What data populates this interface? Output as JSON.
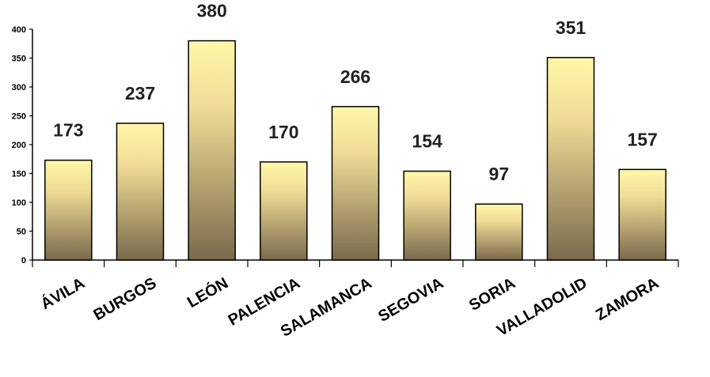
{
  "chart_data": {
    "type": "bar",
    "categories": [
      "ÁVILA",
      "BURGOS",
      "LEÓN",
      "PALENCIA",
      "SALAMANCA",
      "SEGOVIA",
      "SORIA",
      "VALLADOLID",
      "ZAMORA"
    ],
    "values": [
      173,
      237,
      380,
      170,
      266,
      154,
      97,
      351,
      157
    ],
    "ylim": [
      0,
      400
    ],
    "yticks": [
      0,
      50,
      100,
      150,
      200,
      250,
      300,
      350,
      400
    ],
    "grid": false,
    "legend": "none",
    "bar_gradient": [
      "#fff8a8",
      "#f0dc96",
      "#7a6a4c"
    ],
    "bar_outline": "#000000"
  }
}
